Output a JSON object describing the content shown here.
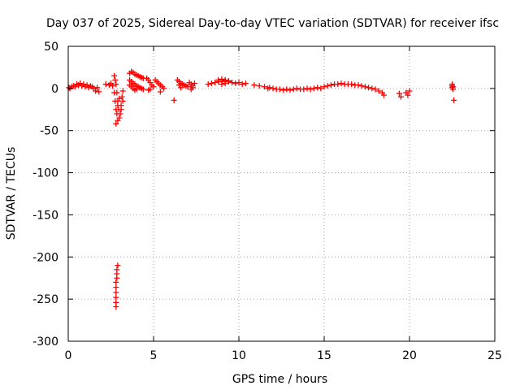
{
  "chart_data": {
    "type": "scatter",
    "title": "Day 037 of 2025, Sidereal Day-to-day VTEC variation (SDTVAR) for receiver ifsc",
    "xlabel": "GPS time / hours",
    "ylabel": "SDTVAR / TECUs",
    "xlim": [
      0,
      25
    ],
    "ylim": [
      -300,
      50
    ],
    "xticks": [
      0,
      5,
      10,
      15,
      20,
      25
    ],
    "yticks": [
      -300,
      -250,
      -200,
      -150,
      -100,
      -50,
      0,
      50
    ],
    "grid": true,
    "marker": "+",
    "color": "#ff0000",
    "points": [
      [
        0.05,
        1
      ],
      [
        0.1,
        0
      ],
      [
        0.2,
        2
      ],
      [
        0.3,
        3
      ],
      [
        0.4,
        2
      ],
      [
        0.5,
        5
      ],
      [
        0.6,
        4
      ],
      [
        0.7,
        6
      ],
      [
        0.8,
        3
      ],
      [
        0.9,
        5
      ],
      [
        1.0,
        2
      ],
      [
        1.1,
        4
      ],
      [
        1.2,
        1
      ],
      [
        1.3,
        3
      ],
      [
        1.4,
        2
      ],
      [
        1.5,
        0
      ],
      [
        1.6,
        -3
      ],
      [
        1.7,
        1
      ],
      [
        1.8,
        -4
      ],
      [
        2.2,
        5
      ],
      [
        2.4,
        4
      ],
      [
        2.5,
        6
      ],
      [
        2.6,
        3
      ],
      [
        2.7,
        15
      ],
      [
        2.75,
        10
      ],
      [
        2.8,
        5
      ],
      [
        2.85,
        -5
      ],
      [
        2.9,
        -15
      ],
      [
        2.95,
        -25
      ],
      [
        3.0,
        -35
      ],
      [
        2.8,
        -42
      ],
      [
        2.9,
        -38
      ],
      [
        3.05,
        -30
      ],
      [
        3.1,
        -20
      ],
      [
        3.15,
        -10
      ],
      [
        3.2,
        -3
      ],
      [
        2.7,
        -5
      ],
      [
        2.75,
        -15
      ],
      [
        2.8,
        -25
      ],
      [
        2.85,
        -30
      ],
      [
        2.9,
        -20
      ],
      [
        3.0,
        -12
      ],
      [
        3.1,
        -25
      ],
      [
        3.2,
        -15
      ],
      [
        2.8,
        -259
      ],
      [
        2.8,
        -254
      ],
      [
        2.8,
        -248
      ],
      [
        2.8,
        -242
      ],
      [
        2.8,
        -236
      ],
      [
        2.8,
        -230
      ],
      [
        2.85,
        -225
      ],
      [
        2.85,
        -220
      ],
      [
        2.85,
        -215
      ],
      [
        2.9,
        -210
      ],
      [
        3.6,
        18
      ],
      [
        3.7,
        20
      ],
      [
        3.8,
        19
      ],
      [
        3.9,
        17
      ],
      [
        4.0,
        16
      ],
      [
        4.1,
        15
      ],
      [
        4.2,
        14
      ],
      [
        4.3,
        13
      ],
      [
        4.4,
        12
      ],
      [
        3.6,
        10
      ],
      [
        3.7,
        8
      ],
      [
        3.8,
        6
      ],
      [
        3.9,
        5
      ],
      [
        4.0,
        3
      ],
      [
        4.1,
        2
      ],
      [
        4.2,
        1
      ],
      [
        4.3,
        0
      ],
      [
        4.4,
        -1
      ],
      [
        3.6,
        4
      ],
      [
        3.7,
        2
      ],
      [
        3.8,
        0
      ],
      [
        3.9,
        -2
      ],
      [
        4.0,
        -1
      ],
      [
        4.6,
        12
      ],
      [
        4.7,
        10
      ],
      [
        4.8,
        7
      ],
      [
        4.9,
        4
      ],
      [
        5.0,
        2
      ],
      [
        4.7,
        -2
      ],
      [
        4.8,
        -1
      ],
      [
        5.1,
        10
      ],
      [
        5.2,
        8
      ],
      [
        5.3,
        6
      ],
      [
        5.4,
        4
      ],
      [
        5.5,
        2
      ],
      [
        5.6,
        0
      ],
      [
        5.4,
        -4
      ],
      [
        6.2,
        -14
      ],
      [
        6.4,
        10
      ],
      [
        6.5,
        8
      ],
      [
        6.6,
        6
      ],
      [
        6.7,
        5
      ],
      [
        6.8,
        4
      ],
      [
        6.9,
        3
      ],
      [
        7.0,
        2
      ],
      [
        6.5,
        4
      ],
      [
        6.6,
        1
      ],
      [
        7.1,
        7
      ],
      [
        7.2,
        5
      ],
      [
        7.3,
        3
      ],
      [
        7.4,
        6
      ],
      [
        7.2,
        -1
      ],
      [
        7.3,
        1
      ],
      [
        8.2,
        5
      ],
      [
        8.4,
        6
      ],
      [
        8.6,
        7
      ],
      [
        8.8,
        8
      ],
      [
        9.0,
        8
      ],
      [
        9.2,
        9
      ],
      [
        9.4,
        8
      ],
      [
        9.6,
        7
      ],
      [
        9.8,
        6
      ],
      [
        10.0,
        7
      ],
      [
        10.2,
        5
      ],
      [
        10.4,
        6
      ],
      [
        8.8,
        10
      ],
      [
        9.0,
        11
      ],
      [
        9.2,
        10
      ],
      [
        9.4,
        9
      ],
      [
        9.0,
        5
      ],
      [
        9.2,
        6
      ],
      [
        10.9,
        4
      ],
      [
        11.2,
        3
      ],
      [
        11.5,
        2
      ],
      [
        11.7,
        0
      ],
      [
        11.8,
        1
      ],
      [
        12.0,
        0
      ],
      [
        12.2,
        -1
      ],
      [
        12.4,
        -1
      ],
      [
        12.6,
        -2
      ],
      [
        12.8,
        -1
      ],
      [
        13.0,
        -2
      ],
      [
        13.2,
        -1
      ],
      [
        13.4,
        0
      ],
      [
        13.6,
        -1
      ],
      [
        13.8,
        -1
      ],
      [
        14.0,
        0
      ],
      [
        14.2,
        -1
      ],
      [
        14.4,
        0
      ],
      [
        14.6,
        1
      ],
      [
        14.8,
        0
      ],
      [
        15.0,
        2
      ],
      [
        15.2,
        3
      ],
      [
        15.4,
        4
      ],
      [
        15.6,
        5
      ],
      [
        15.8,
        5
      ],
      [
        16.0,
        6
      ],
      [
        16.2,
        5
      ],
      [
        16.4,
        5
      ],
      [
        16.6,
        5
      ],
      [
        16.8,
        4
      ],
      [
        17.0,
        4
      ],
      [
        17.2,
        3
      ],
      [
        17.4,
        2
      ],
      [
        17.6,
        1
      ],
      [
        17.8,
        0
      ],
      [
        18.0,
        -1
      ],
      [
        18.2,
        -3
      ],
      [
        18.4,
        -5
      ],
      [
        18.5,
        -8
      ],
      [
        19.4,
        -6
      ],
      [
        19.5,
        -10
      ],
      [
        19.8,
        -5
      ],
      [
        19.9,
        -8
      ],
      [
        20.0,
        -3
      ],
      [
        22.5,
        5
      ],
      [
        22.5,
        3
      ],
      [
        22.5,
        1
      ],
      [
        22.55,
        -1
      ],
      [
        22.55,
        2
      ],
      [
        22.6,
        -14
      ]
    ]
  }
}
